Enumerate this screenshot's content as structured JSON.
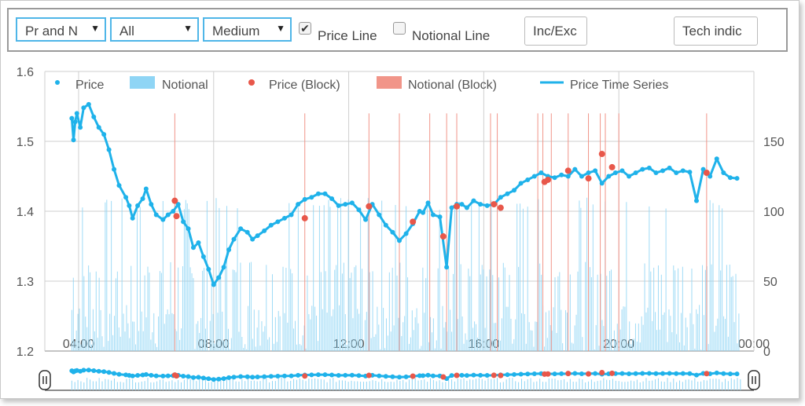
{
  "toolbar": {
    "select1": "Pr and N",
    "select2": "All",
    "select3": "Medium",
    "price_line_label": "Price Line",
    "price_line_checked": true,
    "notional_line_label": "Notional Line",
    "notional_line_checked": false,
    "inc_exc_label": "Inc/Exc",
    "tech_label": "Tech indic"
  },
  "colors": {
    "price": "#1fb2ea",
    "notional": "#8fd5f5",
    "block": "#e8574a",
    "notional_block": "#f19589",
    "grid": "#cfcfcf"
  },
  "chart_data": {
    "type": "line",
    "title": "",
    "legend_position": "top",
    "legend": [
      "Price",
      "Notional",
      "Price (Block)",
      "Notional (Block)",
      "Price Time Series"
    ],
    "x_ticks": [
      "04:00",
      "08:00",
      "12:00",
      "16:00",
      "20:00",
      "00:00"
    ],
    "y_left": {
      "ticks": [
        "1.2",
        "1.3",
        "1.4",
        "1.5",
        "1.6"
      ],
      "range": [
        1.2,
        1.6
      ]
    },
    "y_right": {
      "ticks": [
        "0",
        "50",
        "100",
        "150"
      ],
      "range": [
        0,
        200
      ]
    },
    "x_range_hours": [
      3.0,
      24.0
    ],
    "price_series": {
      "name": "Price Time Series",
      "hours": [
        3.8,
        3.85,
        3.9,
        3.95,
        4.05,
        4.15,
        4.3,
        4.45,
        4.6,
        4.75,
        4.9,
        5.05,
        5.2,
        5.4,
        5.5,
        5.6,
        5.75,
        5.9,
        6.0,
        6.15,
        6.3,
        6.5,
        6.65,
        6.8,
        6.95,
        7.1,
        7.25,
        7.4,
        7.55,
        7.7,
        7.85,
        8.0,
        8.15,
        8.3,
        8.45,
        8.6,
        8.8,
        9.0,
        9.15,
        9.3,
        9.5,
        9.7,
        9.9,
        10.1,
        10.3,
        10.5,
        10.7,
        10.9,
        11.1,
        11.3,
        11.5,
        11.7,
        11.9,
        12.1,
        12.3,
        12.5,
        12.7,
        12.9,
        13.1,
        13.3,
        13.5,
        13.7,
        13.9,
        14.1,
        14.2,
        14.35,
        14.5,
        14.7,
        14.9,
        15.05,
        15.2,
        15.35,
        15.5,
        15.7,
        15.9,
        16.1,
        16.3,
        16.5,
        16.7,
        16.9,
        17.1,
        17.3,
        17.5,
        17.7,
        17.9,
        18.1,
        18.3,
        18.5,
        18.7,
        18.9,
        19.1,
        19.3,
        19.5,
        19.7,
        19.9,
        20.1,
        20.3,
        20.5,
        20.7,
        20.9,
        21.1,
        21.3,
        21.5,
        21.7,
        21.9,
        22.1,
        22.3,
        22.5,
        22.7,
        22.9,
        23.1,
        23.3,
        23.5
      ],
      "prices": [
        1.533,
        1.502,
        1.528,
        1.54,
        1.52,
        1.548,
        1.553,
        1.535,
        1.52,
        1.51,
        1.488,
        1.46,
        1.437,
        1.42,
        1.408,
        1.39,
        1.408,
        1.418,
        1.432,
        1.41,
        1.395,
        1.388,
        1.395,
        1.4,
        1.41,
        1.385,
        1.375,
        1.348,
        1.355,
        1.335,
        1.317,
        1.295,
        1.305,
        1.32,
        1.345,
        1.36,
        1.375,
        1.37,
        1.36,
        1.365,
        1.372,
        1.38,
        1.385,
        1.39,
        1.395,
        1.41,
        1.417,
        1.42,
        1.425,
        1.425,
        1.418,
        1.408,
        1.41,
        1.412,
        1.402,
        1.388,
        1.41,
        1.395,
        1.38,
        1.37,
        1.358,
        1.368,
        1.382,
        1.4,
        1.398,
        1.412,
        1.395,
        1.392,
        1.32,
        1.405,
        1.41,
        1.41,
        1.405,
        1.415,
        1.41,
        1.408,
        1.41,
        1.42,
        1.425,
        1.43,
        1.44,
        1.445,
        1.45,
        1.455,
        1.45,
        1.448,
        1.452,
        1.45,
        1.46,
        1.45,
        1.455,
        1.458,
        1.44,
        1.45,
        1.455,
        1.458,
        1.45,
        1.455,
        1.46,
        1.462,
        1.455,
        1.458,
        1.462,
        1.455,
        1.458,
        1.456,
        1.415,
        1.46,
        1.45,
        1.475,
        1.455,
        1.448,
        1.447
      ]
    },
    "price_block": {
      "name": "Price (Block)",
      "hours": [
        6.85,
        6.9,
        10.7,
        12.6,
        13.9,
        14.8,
        15.2,
        16.3,
        16.5,
        17.8,
        17.9,
        18.5,
        19.1,
        19.5,
        19.8,
        22.6
      ],
      "prices": [
        1.415,
        1.393,
        1.39,
        1.407,
        1.385,
        1.364,
        1.407,
        1.41,
        1.405,
        1.442,
        1.445,
        1.458,
        1.447,
        1.482,
        1.463,
        1.455
      ]
    },
    "notional_block_hours": [
      6.85,
      10.7,
      12.6,
      13.5,
      14.4,
      14.9,
      15.2,
      16.2,
      16.4,
      17.6,
      17.75,
      18.0,
      18.5,
      19.1,
      19.45,
      19.6,
      20.0,
      22.6
    ]
  },
  "navigator": {
    "left_handle": "II",
    "right_handle": "II"
  }
}
